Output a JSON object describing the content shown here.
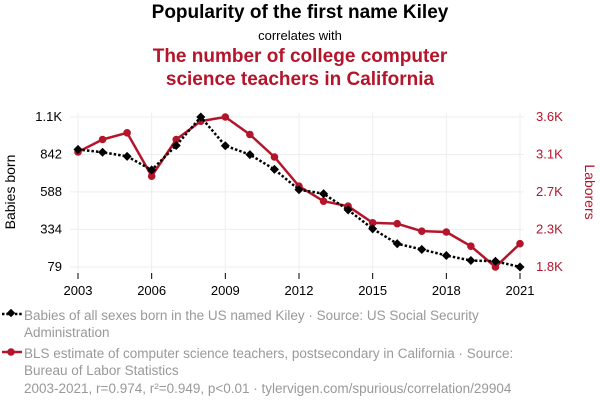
{
  "header": {
    "title": "Popularity of the first name Kiley",
    "subtitle": "correlates with",
    "title2_line1": "The number of college computer",
    "title2_line2": "science teachers in California"
  },
  "legend": {
    "series1_text": "Babies of all sexes born in the US named Kiley · Source: US Social Security Administration",
    "series2_text": "BLS estimate of computer science teachers, postsecondary in California · Source: Bureau of Labor Statistics"
  },
  "footer": {
    "text": "2003-2021, r=0.974, r²=0.949, p<0.01 · tylervigen.com/spurious/correlation/29904"
  },
  "colors": {
    "series1": "#000000",
    "series2": "#b5152b",
    "grid": "#eeeeee"
  },
  "chart_data": {
    "type": "line",
    "x": [
      2003,
      2004,
      2005,
      2006,
      2007,
      2008,
      2009,
      2010,
      2011,
      2012,
      2013,
      2014,
      2015,
      2016,
      2017,
      2018,
      2019,
      2020,
      2021
    ],
    "xticks": [
      "2003",
      "2006",
      "2009",
      "2012",
      "2015",
      "2018",
      "2021"
    ],
    "left_axis": {
      "label": "Babies born",
      "ticks": [
        "1.1K",
        "842",
        "588",
        "334",
        "79"
      ],
      "tick_values": [
        1096,
        842,
        588,
        334,
        79
      ],
      "lim": [
        79,
        1096
      ]
    },
    "right_axis": {
      "label": "Laborers",
      "ticks": [
        "3.6K",
        "3.1K",
        "2.7K",
        "2.3K",
        "1.8K"
      ],
      "tick_values": [
        3600,
        3150,
        2700,
        2250,
        1800
      ],
      "lim": [
        1800,
        3600
      ]
    },
    "series": [
      {
        "name": "Babies of all sexes born in the US named Kiley",
        "axis": "left",
        "values": [
          876,
          857,
          829,
          737,
          903,
          1096,
          901,
          841,
          741,
          603,
          576,
          466,
          338,
          237,
          198,
          157,
          123,
          118,
          79
        ]
      },
      {
        "name": "BLS estimate of computer science teachers, postsecondary in California",
        "axis": "right",
        "values": [
          3180,
          3330,
          3410,
          2890,
          3330,
          3550,
          3600,
          3390,
          3120,
          2770,
          2590,
          2530,
          2330,
          2320,
          2230,
          2220,
          2050,
          1800,
          2080
        ]
      }
    ],
    "grid": true,
    "legend_position": "bottom"
  }
}
